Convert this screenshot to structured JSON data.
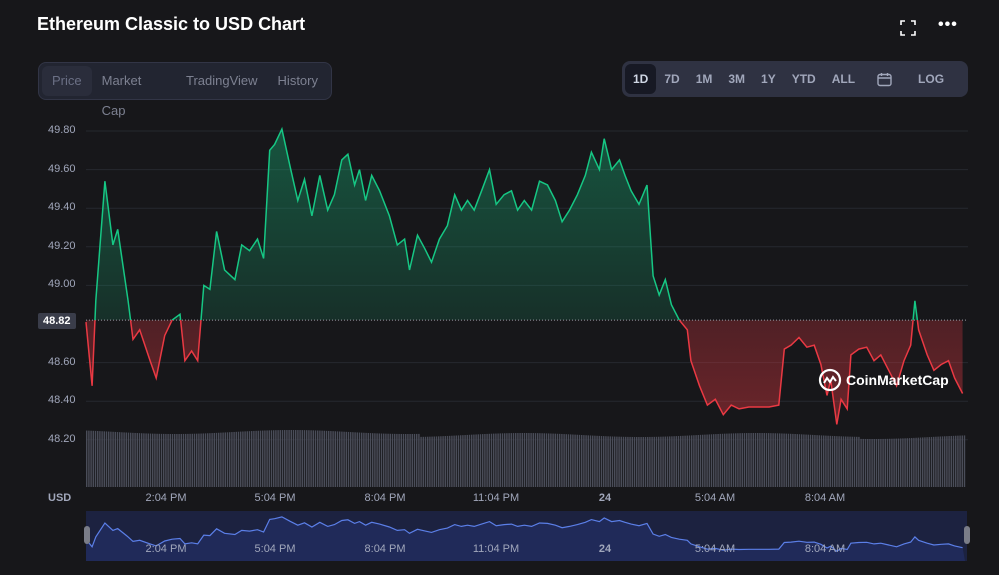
{
  "title": "Ethereum Classic to USD Chart",
  "icons": {
    "fullscreen": "fullscreen-icon",
    "more": "more-horizontal-icon",
    "calendar": "calendar-icon"
  },
  "tabs": [
    {
      "label": "Price",
      "active": true
    },
    {
      "label": "Market Cap"
    },
    {
      "label": "TradingView"
    },
    {
      "label": "History"
    }
  ],
  "ranges": [
    {
      "label": "1D",
      "active": true
    },
    {
      "label": "7D"
    },
    {
      "label": "1M"
    },
    {
      "label": "3M"
    },
    {
      "label": "1Y"
    },
    {
      "label": "YTD"
    },
    {
      "label": "ALL"
    }
  ],
  "log_label": "LOG",
  "watermark": "CoinMarketCap",
  "colors": {
    "up": "#16c784",
    "down": "#ea3943",
    "navigator": "#5b7fe8"
  },
  "chart_data": {
    "type": "line",
    "title": "Ethereum Classic to USD Chart",
    "currency_label": "USD",
    "reference_price": 48.82,
    "reference_label": "48.82",
    "ylim": [
      48.1,
      49.9
    ],
    "yticks": [
      "49.80",
      "49.60",
      "49.40",
      "49.20",
      "49.00",
      "48.60",
      "48.40",
      "48.20"
    ],
    "xticks": [
      "2:04 PM",
      "5:04 PM",
      "8:04 PM",
      "11:04 PM",
      "24",
      "5:04 AM",
      "8:04 AM"
    ],
    "grid": true,
    "points": [
      [
        "23 11:52",
        48.81
      ],
      [
        "23 12:02",
        48.48
      ],
      [
        "23 12:08",
        48.92
      ],
      [
        "23 12:23",
        49.54
      ],
      [
        "23 12:36",
        49.21
      ],
      [
        "23 12:44",
        49.29
      ],
      [
        "23 13:01",
        48.92
      ],
      [
        "23 13:09",
        48.72
      ],
      [
        "23 13:20",
        48.77
      ],
      [
        "23 13:37",
        48.61
      ],
      [
        "23 13:47",
        48.52
      ],
      [
        "23 14:01",
        48.74
      ],
      [
        "23 14:13",
        48.82
      ],
      [
        "23 14:26",
        48.85
      ],
      [
        "23 14:34",
        48.61
      ],
      [
        "23 14:45",
        48.66
      ],
      [
        "23 14:55",
        48.61
      ],
      [
        "23 15:05",
        49.0
      ],
      [
        "23 15:15",
        48.98
      ],
      [
        "23 15:26",
        49.28
      ],
      [
        "23 15:39",
        49.08
      ],
      [
        "23 15:56",
        49.03
      ],
      [
        "23 16:07",
        49.21
      ],
      [
        "23 16:20",
        49.18
      ],
      [
        "23 16:33",
        49.24
      ],
      [
        "23 16:43",
        49.14
      ],
      [
        "23 16:53",
        49.7
      ],
      [
        "23 17:01",
        49.73
      ],
      [
        "23 17:13",
        49.81
      ],
      [
        "23 17:26",
        49.62
      ],
      [
        "23 17:39",
        49.44
      ],
      [
        "23 17:50",
        49.55
      ],
      [
        "23 18:02",
        49.36
      ],
      [
        "23 18:15",
        49.57
      ],
      [
        "23 18:28",
        49.39
      ],
      [
        "23 18:39",
        49.47
      ],
      [
        "23 18:51",
        49.65
      ],
      [
        "23 19:01",
        49.68
      ],
      [
        "23 19:12",
        49.52
      ],
      [
        "23 19:20",
        49.6
      ],
      [
        "23 19:30",
        49.44
      ],
      [
        "23 19:40",
        49.57
      ],
      [
        "23 19:53",
        49.49
      ],
      [
        "23 20:09",
        49.36
      ],
      [
        "23 20:22",
        49.21
      ],
      [
        "23 20:34",
        49.24
      ],
      [
        "23 20:42",
        49.08
      ],
      [
        "23 20:55",
        49.26
      ],
      [
        "23 21:07",
        49.19
      ],
      [
        "23 21:18",
        49.12
      ],
      [
        "23 21:31",
        49.24
      ],
      [
        "23 21:44",
        49.31
      ],
      [
        "23 21:56",
        49.47
      ],
      [
        "23 22:07",
        49.39
      ],
      [
        "23 22:17",
        49.44
      ],
      [
        "23 22:28",
        49.39
      ],
      [
        "23 22:40",
        49.49
      ],
      [
        "23 22:53",
        49.6
      ],
      [
        "23 23:04",
        49.42
      ],
      [
        "23 23:17",
        49.47
      ],
      [
        "23 23:29",
        49.49
      ],
      [
        "23 23:39",
        49.39
      ],
      [
        "23 23:50",
        49.44
      ],
      [
        "24 00:02",
        49.39
      ],
      [
        "24 00:15",
        49.54
      ],
      [
        "24 00:28",
        49.52
      ],
      [
        "24 00:41",
        49.44
      ],
      [
        "24 00:52",
        49.33
      ],
      [
        "24 01:04",
        49.39
      ],
      [
        "24 01:17",
        49.47
      ],
      [
        "24 01:30",
        49.57
      ],
      [
        "24 01:40",
        49.69
      ],
      [
        "24 01:53",
        49.6
      ],
      [
        "24 02:01",
        49.76
      ],
      [
        "24 02:13",
        49.6
      ],
      [
        "24 02:26",
        49.65
      ],
      [
        "24 02:35",
        49.57
      ],
      [
        "24 02:45",
        49.49
      ],
      [
        "24 02:58",
        49.42
      ],
      [
        "24 03:11",
        49.52
      ],
      [
        "24 03:21",
        49.05
      ],
      [
        "24 03:31",
        48.95
      ],
      [
        "24 03:41",
        49.03
      ],
      [
        "24 03:51",
        48.9
      ],
      [
        "24 04:04",
        48.82
      ],
      [
        "24 04:17",
        48.77
      ],
      [
        "24 04:23",
        48.61
      ],
      [
        "24 04:37",
        48.48
      ],
      [
        "24 04:50",
        48.38
      ],
      [
        "24 05:03",
        48.41
      ],
      [
        "24 05:16",
        48.33
      ],
      [
        "24 05:29",
        48.38
      ],
      [
        "24 05:42",
        48.36
      ],
      [
        "24 05:58",
        48.37
      ],
      [
        "24 06:15",
        48.37
      ],
      [
        "24 06:31",
        48.37
      ],
      [
        "24 06:47",
        48.38
      ],
      [
        "24 06:56",
        48.67
      ],
      [
        "24 07:07",
        48.69
      ],
      [
        "24 07:20",
        48.73
      ],
      [
        "24 07:33",
        48.68
      ],
      [
        "24 07:45",
        48.69
      ],
      [
        "24 07:56",
        48.59
      ],
      [
        "24 08:06",
        48.43
      ],
      [
        "24 08:12",
        48.51
      ],
      [
        "24 08:22",
        48.28
      ],
      [
        "24 08:29",
        48.41
      ],
      [
        "24 08:39",
        48.36
      ],
      [
        "24 08:45",
        48.64
      ],
      [
        "24 08:58",
        48.67
      ],
      [
        "24 09:11",
        48.68
      ],
      [
        "24 09:23",
        48.61
      ],
      [
        "24 09:34",
        48.64
      ],
      [
        "24 09:47",
        48.56
      ],
      [
        "24 10:00",
        48.48
      ],
      [
        "24 10:12",
        48.61
      ],
      [
        "24 10:23",
        48.69
      ],
      [
        "24 10:30",
        48.92
      ],
      [
        "24 10:36",
        48.77
      ],
      [
        "24 10:50",
        48.64
      ],
      [
        "24 11:01",
        48.56
      ],
      [
        "24 11:13",
        48.59
      ],
      [
        "24 11:25",
        48.61
      ],
      [
        "24 11:35",
        48.52
      ],
      [
        "24 11:48",
        48.44
      ]
    ]
  }
}
